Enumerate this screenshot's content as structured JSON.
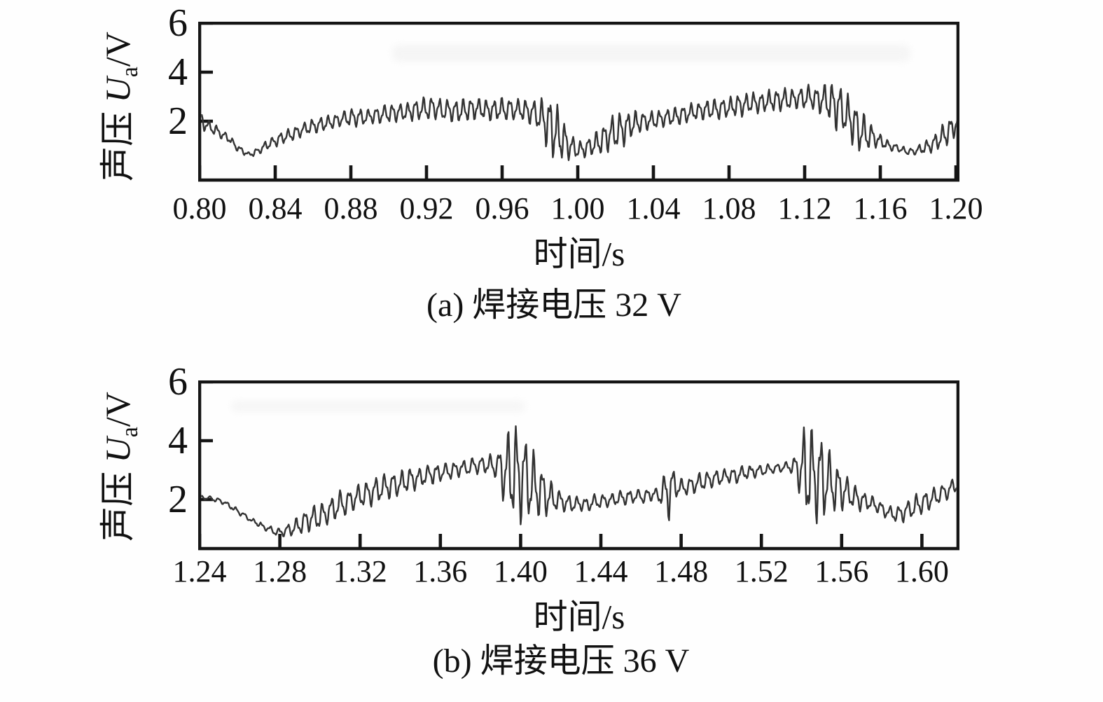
{
  "figure": {
    "background": "#fefefe",
    "axis_color": "#151515",
    "line_color": "#333333",
    "text_color": "#111111"
  },
  "chart_data": [
    {
      "type": "line",
      "title": "",
      "caption": "(a) 焊接电压 32 V",
      "xlabel": "时间/s",
      "ylabel": {
        "prefix": "声压 ",
        "symbol": "U",
        "subscript": "a",
        "suffix": "/V"
      },
      "xlim": [
        0.8,
        1.2011
      ],
      "ylim": [
        -0.4,
        6
      ],
      "grid": false,
      "legend": "none",
      "xticks": [
        {
          "v": 0.8,
          "label": "0.80"
        },
        {
          "v": 0.84,
          "label": "0.84"
        },
        {
          "v": 0.88,
          "label": "0.88"
        },
        {
          "v": 0.92,
          "label": "0.92"
        },
        {
          "v": 0.96,
          "label": "0.96"
        },
        {
          "v": 1.0,
          "label": "1.00"
        },
        {
          "v": 1.04,
          "label": "1.04"
        },
        {
          "v": 1.08,
          "label": "1.08"
        },
        {
          "v": 1.12,
          "label": "1.12"
        },
        {
          "v": 1.16,
          "label": "1.16"
        },
        {
          "v": 1.2,
          "label": "1.20"
        }
      ],
      "yticks": [
        {
          "v": 6,
          "label": "6"
        },
        {
          "v": 4,
          "label": "4"
        },
        {
          "v": 2,
          "label": "2"
        }
      ],
      "series": {
        "name": "sound-pressure-32V",
        "osc_freq_hz": 240,
        "seed": 13,
        "trend": [
          [
            0.8,
            2.1
          ],
          [
            0.802,
            1.95
          ],
          [
            0.806,
            1.7
          ],
          [
            0.81,
            1.55
          ],
          [
            0.814,
            1.35
          ],
          [
            0.818,
            1.1
          ],
          [
            0.822,
            0.8
          ],
          [
            0.826,
            0.62
          ],
          [
            0.83,
            0.75
          ],
          [
            0.836,
            1.05
          ],
          [
            0.842,
            1.25
          ],
          [
            0.85,
            1.5
          ],
          [
            0.858,
            1.75
          ],
          [
            0.866,
            1.9
          ],
          [
            0.874,
            2.05
          ],
          [
            0.882,
            2.15
          ],
          [
            0.89,
            2.2
          ],
          [
            0.898,
            2.3
          ],
          [
            0.906,
            2.35
          ],
          [
            0.914,
            2.45
          ],
          [
            0.922,
            2.55
          ],
          [
            0.93,
            2.45
          ],
          [
            0.938,
            2.4
          ],
          [
            0.946,
            2.5
          ],
          [
            0.954,
            2.45
          ],
          [
            0.962,
            2.5
          ],
          [
            0.97,
            2.45
          ],
          [
            0.978,
            2.3
          ],
          [
            0.984,
            1.9
          ],
          [
            0.99,
            1.4
          ],
          [
            0.996,
            1.0
          ],
          [
            1.0,
            0.85
          ],
          [
            1.004,
            0.9
          ],
          [
            1.01,
            1.1
          ],
          [
            1.016,
            1.4
          ],
          [
            1.022,
            1.6
          ],
          [
            1.028,
            1.85
          ],
          [
            1.034,
            2.0
          ],
          [
            1.042,
            2.1
          ],
          [
            1.05,
            2.2
          ],
          [
            1.058,
            2.3
          ],
          [
            1.066,
            2.45
          ],
          [
            1.074,
            2.5
          ],
          [
            1.082,
            2.6
          ],
          [
            1.09,
            2.7
          ],
          [
            1.098,
            2.75
          ],
          [
            1.106,
            2.85
          ],
          [
            1.114,
            2.9
          ],
          [
            1.122,
            2.95
          ],
          [
            1.13,
            2.9
          ],
          [
            1.138,
            2.6
          ],
          [
            1.144,
            2.1
          ],
          [
            1.15,
            1.55
          ],
          [
            1.156,
            1.35
          ],
          [
            1.162,
            1.1
          ],
          [
            1.168,
            0.9
          ],
          [
            1.174,
            0.75
          ],
          [
            1.18,
            0.8
          ],
          [
            1.186,
            1.0
          ],
          [
            1.192,
            1.3
          ],
          [
            1.197,
            1.6
          ],
          [
            1.201,
            1.95
          ]
        ],
        "envelope": [
          [
            0.8,
            0.45
          ],
          [
            0.804,
            0.3
          ],
          [
            0.81,
            0.22
          ],
          [
            0.818,
            0.18
          ],
          [
            0.826,
            0.12
          ],
          [
            0.834,
            0.18
          ],
          [
            0.842,
            0.28
          ],
          [
            0.852,
            0.3
          ],
          [
            0.862,
            0.33
          ],
          [
            0.872,
            0.3
          ],
          [
            0.882,
            0.42
          ],
          [
            0.89,
            0.33
          ],
          [
            0.9,
            0.4
          ],
          [
            0.91,
            0.38
          ],
          [
            0.92,
            0.55
          ],
          [
            0.928,
            0.45
          ],
          [
            0.936,
            0.5
          ],
          [
            0.944,
            0.48
          ],
          [
            0.952,
            0.42
          ],
          [
            0.96,
            0.5
          ],
          [
            0.968,
            0.45
          ],
          [
            0.976,
            0.55
          ],
          [
            0.982,
            0.95
          ],
          [
            0.986,
            1.3
          ],
          [
            0.99,
            1.1
          ],
          [
            0.994,
            0.7
          ],
          [
            1.0,
            0.35
          ],
          [
            1.006,
            0.4
          ],
          [
            1.012,
            0.6
          ],
          [
            1.018,
            0.8
          ],
          [
            1.024,
            0.75
          ],
          [
            1.03,
            0.5
          ],
          [
            1.038,
            0.4
          ],
          [
            1.046,
            0.38
          ],
          [
            1.054,
            0.42
          ],
          [
            1.062,
            0.4
          ],
          [
            1.07,
            0.45
          ],
          [
            1.078,
            0.42
          ],
          [
            1.086,
            0.48
          ],
          [
            1.094,
            0.42
          ],
          [
            1.102,
            0.45
          ],
          [
            1.11,
            0.5
          ],
          [
            1.118,
            0.45
          ],
          [
            1.126,
            0.55
          ],
          [
            1.132,
            0.8
          ],
          [
            1.136,
            1.05
          ],
          [
            1.14,
            0.95
          ],
          [
            1.146,
            1.0
          ],
          [
            1.152,
            0.85
          ],
          [
            1.158,
            0.35
          ],
          [
            1.164,
            0.22
          ],
          [
            1.17,
            0.15
          ],
          [
            1.176,
            0.12
          ],
          [
            1.182,
            0.25
          ],
          [
            1.188,
            0.35
          ],
          [
            1.193,
            0.5
          ],
          [
            1.197,
            0.6
          ],
          [
            1.201,
            0.45
          ]
        ]
      }
    },
    {
      "type": "line",
      "title": "",
      "caption": "(b) 焊接电压 36 V",
      "xlabel": "时间/s",
      "ylabel": {
        "prefix": "声压 ",
        "symbol": "U",
        "subscript": "a",
        "suffix": "/V"
      },
      "xlim": [
        1.24,
        1.618
      ],
      "ylim": [
        0.33,
        6
      ],
      "grid": false,
      "legend": "none",
      "xticks": [
        {
          "v": 1.24,
          "label": "1.24"
        },
        {
          "v": 1.28,
          "label": "1.28"
        },
        {
          "v": 1.32,
          "label": "1.32"
        },
        {
          "v": 1.36,
          "label": "1.36"
        },
        {
          "v": 1.4,
          "label": "1.40"
        },
        {
          "v": 1.44,
          "label": "1.44"
        },
        {
          "v": 1.48,
          "label": "1.48"
        },
        {
          "v": 1.52,
          "label": "1.52"
        },
        {
          "v": 1.56,
          "label": "1.56"
        },
        {
          "v": 1.6,
          "label": "1.60"
        }
      ],
      "yticks": [
        {
          "v": 6,
          "label": "6"
        },
        {
          "v": 4,
          "label": "4"
        },
        {
          "v": 2,
          "label": "2"
        }
      ],
      "series": {
        "name": "sound-pressure-36V",
        "osc_freq_hz": 230,
        "seed": 29,
        "trend": [
          [
            1.24,
            2.05
          ],
          [
            1.244,
            2.05
          ],
          [
            1.248,
            2.0
          ],
          [
            1.252,
            1.9
          ],
          [
            1.256,
            1.75
          ],
          [
            1.26,
            1.55
          ],
          [
            1.264,
            1.4
          ],
          [
            1.268,
            1.2
          ],
          [
            1.272,
            1.05
          ],
          [
            1.276,
            0.95
          ],
          [
            1.28,
            0.9
          ],
          [
            1.284,
            0.95
          ],
          [
            1.288,
            1.05
          ],
          [
            1.292,
            1.2
          ],
          [
            1.298,
            1.4
          ],
          [
            1.304,
            1.6
          ],
          [
            1.31,
            1.8
          ],
          [
            1.318,
            2.05
          ],
          [
            1.326,
            2.25
          ],
          [
            1.334,
            2.45
          ],
          [
            1.342,
            2.6
          ],
          [
            1.35,
            2.75
          ],
          [
            1.358,
            2.9
          ],
          [
            1.366,
            3.0
          ],
          [
            1.374,
            3.1
          ],
          [
            1.382,
            3.2
          ],
          [
            1.388,
            3.15
          ],
          [
            1.392,
            3.0
          ],
          [
            1.396,
            2.9
          ],
          [
            1.4,
            2.8
          ],
          [
            1.404,
            2.6
          ],
          [
            1.408,
            2.4
          ],
          [
            1.412,
            2.2
          ],
          [
            1.416,
            2.05
          ],
          [
            1.42,
            1.95
          ],
          [
            1.426,
            1.85
          ],
          [
            1.432,
            1.85
          ],
          [
            1.44,
            1.95
          ],
          [
            1.448,
            2.05
          ],
          [
            1.456,
            2.1
          ],
          [
            1.464,
            2.15
          ],
          [
            1.472,
            2.2
          ],
          [
            1.476,
            2.45
          ],
          [
            1.48,
            2.4
          ],
          [
            1.488,
            2.55
          ],
          [
            1.496,
            2.7
          ],
          [
            1.504,
            2.8
          ],
          [
            1.512,
            2.9
          ],
          [
            1.52,
            3.0
          ],
          [
            1.528,
            3.05
          ],
          [
            1.534,
            3.1
          ],
          [
            1.538,
            3.05
          ],
          [
            1.542,
            2.95
          ],
          [
            1.546,
            2.85
          ],
          [
            1.55,
            2.75
          ],
          [
            1.554,
            2.6
          ],
          [
            1.558,
            2.4
          ],
          [
            1.562,
            2.25
          ],
          [
            1.566,
            2.1
          ],
          [
            1.572,
            1.95
          ],
          [
            1.578,
            1.75
          ],
          [
            1.584,
            1.55
          ],
          [
            1.588,
            1.5
          ],
          [
            1.592,
            1.6
          ],
          [
            1.598,
            1.8
          ],
          [
            1.604,
            2.0
          ],
          [
            1.61,
            2.2
          ],
          [
            1.616,
            2.45
          ],
          [
            1.618,
            2.55
          ]
        ],
        "envelope": [
          [
            1.24,
            0.1
          ],
          [
            1.248,
            0.07
          ],
          [
            1.256,
            0.08
          ],
          [
            1.264,
            0.08
          ],
          [
            1.272,
            0.1
          ],
          [
            1.28,
            0.15
          ],
          [
            1.286,
            0.25
          ],
          [
            1.292,
            0.4
          ],
          [
            1.298,
            0.5
          ],
          [
            1.304,
            0.45
          ],
          [
            1.31,
            0.5
          ],
          [
            1.318,
            0.45
          ],
          [
            1.326,
            0.5
          ],
          [
            1.334,
            0.48
          ],
          [
            1.342,
            0.45
          ],
          [
            1.35,
            0.4
          ],
          [
            1.358,
            0.35
          ],
          [
            1.366,
            0.32
          ],
          [
            1.374,
            0.3
          ],
          [
            1.382,
            0.32
          ],
          [
            1.388,
            0.45
          ],
          [
            1.392,
            1.3
          ],
          [
            1.396,
            1.7
          ],
          [
            1.4,
            1.75
          ],
          [
            1.404,
            1.45
          ],
          [
            1.408,
            1.1
          ],
          [
            1.412,
            0.8
          ],
          [
            1.416,
            0.55
          ],
          [
            1.42,
            0.35
          ],
          [
            1.428,
            0.25
          ],
          [
            1.436,
            0.28
          ],
          [
            1.444,
            0.25
          ],
          [
            1.452,
            0.28
          ],
          [
            1.46,
            0.25
          ],
          [
            1.468,
            0.22
          ],
          [
            1.474,
            1.1
          ],
          [
            1.478,
            0.35
          ],
          [
            1.486,
            0.3
          ],
          [
            1.494,
            0.32
          ],
          [
            1.502,
            0.28
          ],
          [
            1.51,
            0.28
          ],
          [
            1.518,
            0.22
          ],
          [
            1.526,
            0.18
          ],
          [
            1.534,
            0.15
          ],
          [
            1.538,
            0.6
          ],
          [
            1.542,
            1.8
          ],
          [
            1.546,
            1.75
          ],
          [
            1.55,
            1.55
          ],
          [
            1.554,
            1.2
          ],
          [
            1.558,
            0.9
          ],
          [
            1.562,
            0.65
          ],
          [
            1.566,
            0.45
          ],
          [
            1.572,
            0.3
          ],
          [
            1.578,
            0.22
          ],
          [
            1.584,
            0.25
          ],
          [
            1.59,
            0.35
          ],
          [
            1.596,
            0.4
          ],
          [
            1.602,
            0.38
          ],
          [
            1.608,
            0.35
          ],
          [
            1.614,
            0.32
          ],
          [
            1.618,
            0.28
          ]
        ]
      }
    }
  ]
}
